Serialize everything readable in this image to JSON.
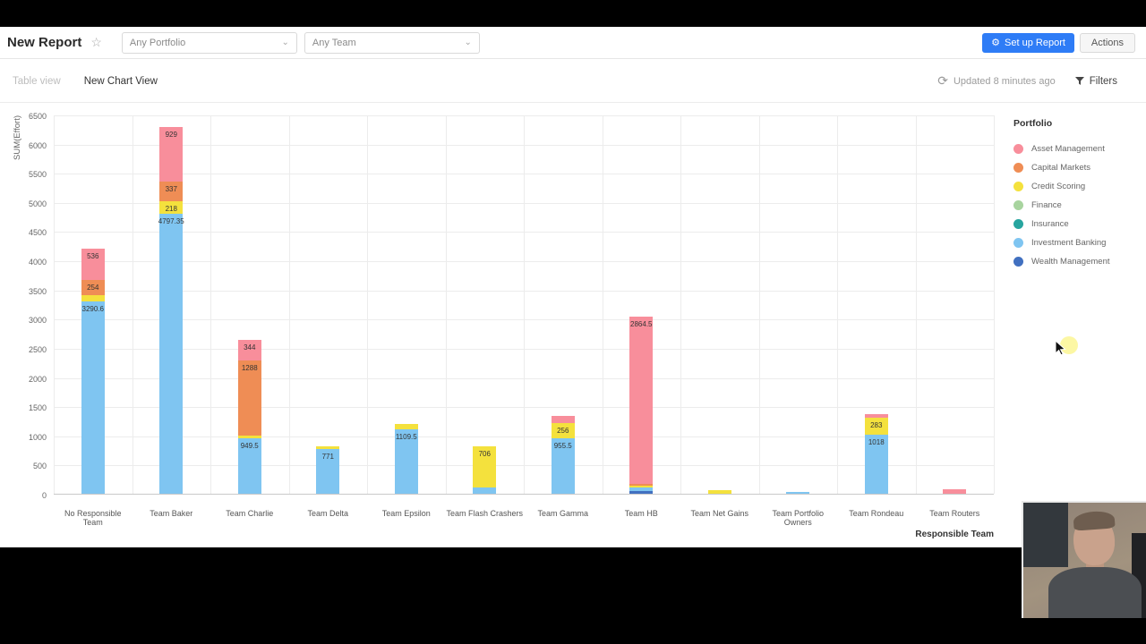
{
  "header": {
    "title": "New Report",
    "star_icon": "☆",
    "portfolio_dropdown": "Any Portfolio",
    "team_dropdown": "Any Team",
    "setup_button": "Set up Report",
    "actions_button": "Actions"
  },
  "toolbar": {
    "tab_table": "Table view",
    "tab_chart": "New Chart View",
    "refresh_icon": "⟳",
    "updated": "Updated 8 minutes ago",
    "filters": "Filters"
  },
  "chart_data": {
    "type": "bar",
    "stacked": true,
    "title": "",
    "xlabel": "Responsible Team",
    "ylabel": "SUM(Effort)",
    "ylim": [
      0,
      6500
    ],
    "ytick_step": 500,
    "grid": true,
    "label_min": 200,
    "categories": [
      "No Responsible Team",
      "Team Baker",
      "Team Charlie",
      "Team Delta",
      "Team Epsilon",
      "Team Flash Crashers",
      "Team Gamma",
      "Team HB",
      "Team Net Gains",
      "Team Portfolio Owners",
      "Team Rondeau",
      "Team Routers"
    ],
    "series": [
      {
        "name": "Wealth Management",
        "color": "#4170c0",
        "values": [
          0,
          0,
          0,
          0,
          0,
          0,
          0,
          40,
          0,
          0,
          0,
          0
        ]
      },
      {
        "name": "Investment Banking",
        "color": "#7fc5f1",
        "values": [
          3290.6,
          4797.35,
          949.5,
          771,
          1109.5,
          100,
          955.5,
          75,
          0,
          30,
          1018,
          0
        ]
      },
      {
        "name": "Insurance",
        "color": "#27a59f",
        "values": [
          0,
          0,
          0,
          0,
          0,
          0,
          0,
          0,
          0,
          0,
          0,
          0
        ]
      },
      {
        "name": "Finance",
        "color": "#a8d49f",
        "values": [
          0,
          0,
          0,
          0,
          0,
          0,
          0,
          0,
          0,
          0,
          0,
          0
        ]
      },
      {
        "name": "Credit Scoring",
        "color": "#f4e13d",
        "values": [
          120,
          218,
          50,
          40,
          80,
          706,
          256,
          30,
          60,
          0,
          283,
          0
        ]
      },
      {
        "name": "Capital Markets",
        "color": "#ef8d55",
        "values": [
          254,
          337,
          1288,
          0,
          0,
          0,
          0,
          30,
          0,
          0,
          0,
          0
        ]
      },
      {
        "name": "Asset Management",
        "color": "#f88e9b",
        "values": [
          536,
          929,
          344,
          0,
          0,
          0,
          120,
          2864.5,
          0,
          0,
          60,
          70
        ]
      }
    ]
  },
  "legend": {
    "title": "Portfolio",
    "items": [
      {
        "label": "Asset Management",
        "color": "#f88e9b"
      },
      {
        "label": "Capital Markets",
        "color": "#ef8d55"
      },
      {
        "label": "Credit Scoring",
        "color": "#f4e13d"
      },
      {
        "label": "Finance",
        "color": "#a8d49f"
      },
      {
        "label": "Insurance",
        "color": "#27a59f"
      },
      {
        "label": "Investment Banking",
        "color": "#7fc5f1"
      },
      {
        "label": "Wealth Management",
        "color": "#4170c0"
      }
    ]
  }
}
